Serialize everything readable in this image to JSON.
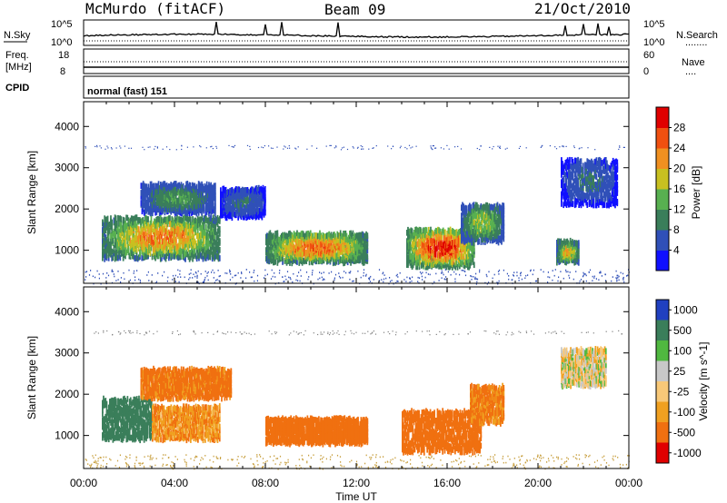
{
  "header": {
    "station": "McMurdo (fitACF)",
    "beam": "Beam 09",
    "date": "21/Oct/2010"
  },
  "noise_panel": {
    "left_label": "N.Sky",
    "right_label": "N.Search",
    "right_legend": "........",
    "top_tick": "10^5",
    "bottom_tick": "10^0",
    "top_tick_right": "10^5",
    "bottom_tick_right": "10^0"
  },
  "freq_panel": {
    "left_label_1": "Freq.",
    "left_label_2": "[MHz]",
    "right_label": "Nave",
    "right_legend": "....",
    "left_ticks": [
      "18",
      "8"
    ],
    "right_ticks": [
      "60",
      "0"
    ]
  },
  "cpid_panel": {
    "label": "CPID",
    "value": "normal (fast) 151"
  },
  "chart_data": [
    {
      "type": "heatmap",
      "name": "power",
      "ylabel": "Slant Range [km]",
      "ylim": [
        200,
        4600
      ],
      "yticks": [
        "1000",
        "2000",
        "3000",
        "4000"
      ],
      "colorbar_label": "Power [dB]",
      "colorbar_ticks": [
        "4",
        "8",
        "12",
        "16",
        "20",
        "24",
        "28"
      ],
      "colors": [
        "#1010ff",
        "#3050b8",
        "#3a7e5a",
        "#58b050",
        "#c8c020",
        "#f09020",
        "#f05010",
        "#e00000"
      ],
      "echo_regions": [
        {
          "t": [
            0.8,
            6.0
          ],
          "r": [
            900,
            1900
          ],
          "peak": 22
        },
        {
          "t": [
            2.5,
            5.8
          ],
          "r": [
            2000,
            2700
          ],
          "peak": 12
        },
        {
          "t": [
            6.0,
            8.0
          ],
          "r": [
            1900,
            2600
          ],
          "peak": 8
        },
        {
          "t": [
            8.0,
            12.5
          ],
          "r": [
            800,
            1500
          ],
          "peak": 24
        },
        {
          "t": [
            14.2,
            17.2
          ],
          "r": [
            700,
            1600
          ],
          "peak": 28
        },
        {
          "t": [
            16.6,
            18.5
          ],
          "r": [
            1300,
            2200
          ],
          "peak": 16
        },
        {
          "t": [
            20.8,
            21.8
          ],
          "r": [
            800,
            1300
          ],
          "peak": 20
        },
        {
          "t": [
            21.0,
            23.5
          ],
          "r": [
            2200,
            3300
          ],
          "peak": 8
        }
      ]
    },
    {
      "type": "heatmap",
      "name": "velocity",
      "ylabel": "Slant Range [km]",
      "xlabel": "Time UT",
      "ylim": [
        200,
        4600
      ],
      "yticks": [
        "1000",
        "2000",
        "3000",
        "4000"
      ],
      "xticks": [
        "00:00",
        "04:00",
        "08:00",
        "12:00",
        "16:00",
        "20:00",
        "00:00"
      ],
      "colorbar_label": "Velocity [m s^-1]",
      "colorbar_ticks": [
        "1000",
        "500",
        "100",
        "25",
        "-25",
        "-100",
        "-500",
        "-1000"
      ],
      "colors": [
        "#2040c0",
        "#3a7e5a",
        "#50b840",
        "#c8c8c8",
        "#f8c878",
        "#f0a020",
        "#f07010",
        "#e00000"
      ],
      "echo_regions": [
        {
          "t": [
            0.8,
            3.0
          ],
          "r": [
            1000,
            2000
          ],
          "v": 300
        },
        {
          "t": [
            3.0,
            6.0
          ],
          "r": [
            1000,
            1800
          ],
          "v": -80
        },
        {
          "t": [
            2.5,
            6.5
          ],
          "r": [
            2000,
            2700
          ],
          "v": -150
        },
        {
          "t": [
            8.0,
            12.5
          ],
          "r": [
            900,
            1500
          ],
          "v": -200
        },
        {
          "t": [
            14.0,
            17.5
          ],
          "r": [
            700,
            1700
          ],
          "v": -250
        },
        {
          "t": [
            17.0,
            18.5
          ],
          "r": [
            1400,
            2300
          ],
          "v": -120
        },
        {
          "t": [
            21.0,
            23.0
          ],
          "r": [
            2300,
            3200
          ],
          "v": 10
        }
      ]
    }
  ]
}
